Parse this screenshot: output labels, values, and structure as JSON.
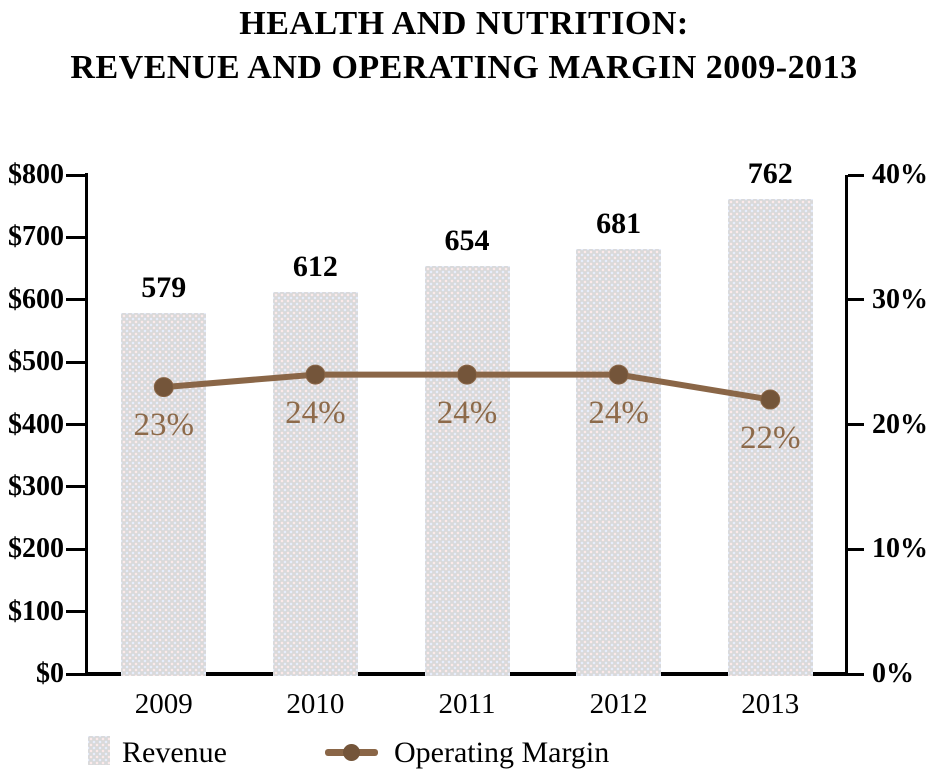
{
  "title": {
    "line1": "HEALTH AND NUTRITION:",
    "line2": "REVENUE AND OPERATING MARGIN 2009-2013"
  },
  "chart_data": {
    "type": "bar",
    "subtype": "combo-bar-line-dual-axis",
    "title": "HEALTH AND NUTRITION: REVENUE AND OPERATING MARGIN 2009-2013",
    "categories": [
      "2009",
      "2010",
      "2011",
      "2012",
      "2013"
    ],
    "series": [
      {
        "name": "Revenue",
        "type": "bar",
        "axis": "left",
        "values": [
          579,
          612,
          654,
          681,
          762
        ],
        "data_labels": [
          "579",
          "612",
          "654",
          "681",
          "762"
        ]
      },
      {
        "name": "Operating Margin",
        "type": "line",
        "axis": "right",
        "values": [
          23,
          24,
          24,
          24,
          22
        ],
        "data_labels": [
          "23%",
          "24%",
          "24%",
          "24%",
          "22%"
        ]
      }
    ],
    "left_axis": {
      "min": 0,
      "max": 800,
      "step": 100,
      "tick_labels": [
        "$0",
        "$100",
        "$200",
        "$300",
        "$400",
        "$500",
        "$600",
        "$700",
        "$800"
      ]
    },
    "right_axis": {
      "min": 0,
      "max": 40,
      "step": 10,
      "tick_labels": [
        "0%",
        "10%",
        "20%",
        "30%",
        "40%"
      ]
    },
    "grid": false,
    "legend_position": "bottom"
  },
  "legend": [
    {
      "label": "Revenue"
    },
    {
      "label": "Operating Margin"
    }
  ],
  "colors": {
    "background": "#ffffff",
    "text": "#000000",
    "bar_fill": "#d9d9da",
    "line": "#8a6647",
    "marker": "#74553a",
    "percent_label": "#8d6a4a"
  }
}
